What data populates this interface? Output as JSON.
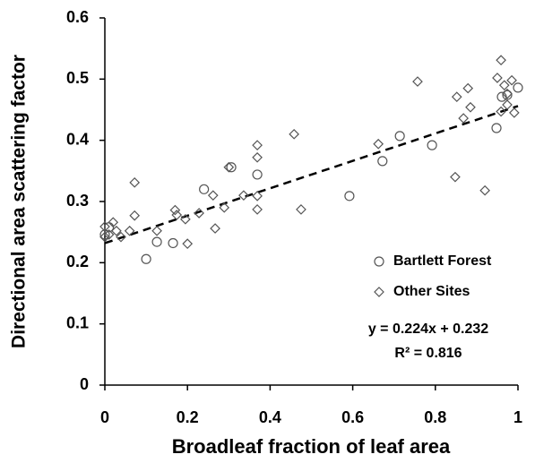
{
  "chart_data": {
    "type": "scatter",
    "x_label": "Broadleaf fraction of leaf area",
    "y_label": "Directional area scattering factor",
    "xlim": [
      0,
      1
    ],
    "ylim": [
      0,
      0.6
    ],
    "xticks": [
      0,
      0.2,
      0.4,
      0.6,
      0.8,
      1
    ],
    "yticks": [
      0,
      0.1,
      0.2,
      0.3,
      0.4,
      0.5,
      0.6
    ],
    "series": [
      {
        "name": "Bartlett Forest",
        "marker": "circle",
        "color": "#555555",
        "x": [
          0,
          0.01,
          0.1,
          0.126,
          0.165,
          0.24,
          0.306,
          0.369,
          0.592,
          0.672,
          0.714,
          0.792,
          0.948,
          0.961,
          0.974,
          1.0
        ],
        "values": [
          0.246,
          0.258,
          0.206,
          0.234,
          0.232,
          0.32,
          0.356,
          0.344,
          0.309,
          0.366,
          0.407,
          0.392,
          0.42,
          0.471,
          0.474,
          0.486
        ]
      },
      {
        "name": "Other Sites",
        "marker": "diamond",
        "color": "#555555",
        "x": [
          0,
          0,
          0.02,
          0.01,
          0.028,
          0.039,
          0.06,
          0.072,
          0.072,
          0.126,
          0.17,
          0.174,
          0.195,
          0.2,
          0.228,
          0.262,
          0.267,
          0.289,
          0.3,
          0.336,
          0.369,
          0.369,
          0.369,
          0.369,
          0.458,
          0.475,
          0.662,
          0.757,
          0.848,
          0.852,
          0.868,
          0.879,
          0.885,
          0.92,
          0.95,
          0.959,
          0.959,
          0.967,
          0.974,
          0.985,
          0.991,
          0.974
        ],
        "values": [
          0.259,
          0.242,
          0.266,
          0.246,
          0.252,
          0.242,
          0.252,
          0.331,
          0.277,
          0.252,
          0.286,
          0.278,
          0.271,
          0.231,
          0.281,
          0.31,
          0.256,
          0.29,
          0.356,
          0.31,
          0.392,
          0.372,
          0.309,
          0.287,
          0.41,
          0.287,
          0.394,
          0.496,
          0.34,
          0.471,
          0.436,
          0.485,
          0.454,
          0.318,
          0.502,
          0.531,
          0.447,
          0.49,
          0.458,
          0.498,
          0.445,
          0.476
        ]
      }
    ],
    "trendline": {
      "x": [
        0,
        1
      ],
      "values": [
        0.232,
        0.456
      ]
    },
    "annotations": [
      "y = 0.224x + 0.232",
      "R² = 0.816"
    ],
    "legend": "lower-right"
  }
}
